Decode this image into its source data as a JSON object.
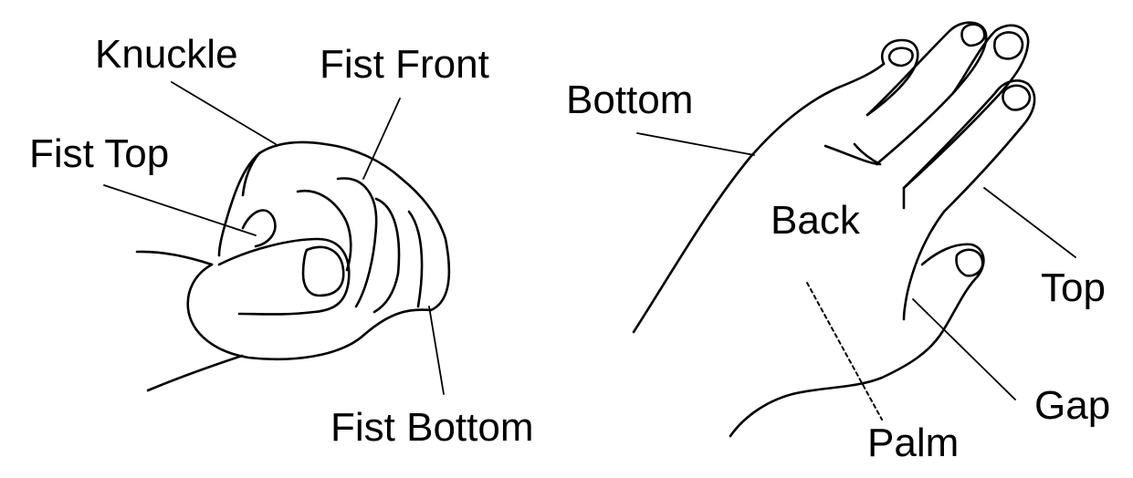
{
  "labels": {
    "knuckle": "Knuckle",
    "fist_front": "Fist Front",
    "fist_top": "Fist Top",
    "fist_bottom": "Fist Bottom",
    "bottom": "Bottom",
    "back": "Back",
    "top": "Top",
    "gap": "Gap",
    "palm": "Palm"
  }
}
